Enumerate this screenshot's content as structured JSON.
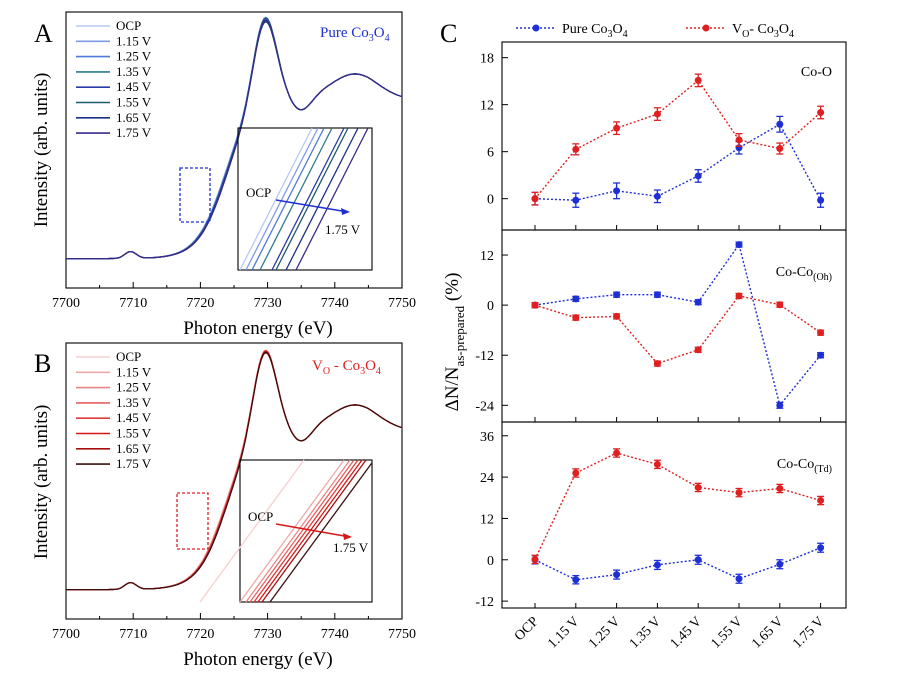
{
  "chart_data": [
    {
      "id": "A",
      "type": "line",
      "panel_label": "A",
      "title": "Pure Co3O4",
      "title_color": "#1f2fd6",
      "xlabel": "Photon energy (eV)",
      "ylabel": "Intensity (arb. units)",
      "xlim": [
        7700,
        7750
      ],
      "xticks": [
        7700,
        7710,
        7720,
        7730,
        7740,
        7750
      ],
      "legend": [
        "OCP",
        "1.15 V",
        "1.25 V",
        "1.35 V",
        "1.45 V",
        "1.55 V",
        "1.65 V",
        "1.75 V"
      ],
      "colors": [
        "#b9c8f2",
        "#7f9be6",
        "#4e7ad8",
        "#2f7a8c",
        "#2a3aa8",
        "#1b5a6a",
        "#1a2f86",
        "#3a2a8a"
      ],
      "inset": {
        "start_label": "OCP",
        "end_label": "1.75 V",
        "arrow_color": "#1f2fd6"
      }
    },
    {
      "id": "B",
      "type": "line",
      "panel_label": "B",
      "title": "VO - Co3O4",
      "title_color": "#e02020",
      "xlabel": "Photon energy (eV)",
      "ylabel": "Intensity (arb. units)",
      "xlim": [
        7700,
        7750
      ],
      "xticks": [
        7700,
        7710,
        7720,
        7730,
        7740,
        7750
      ],
      "legend": [
        "OCP",
        "1.15 V",
        "1.25 V",
        "1.35 V",
        "1.45 V",
        "1.55 V",
        "1.65 V",
        "1.75 V"
      ],
      "colors": [
        "#f6d0d0",
        "#f0a8a8",
        "#ea8585",
        "#e66060",
        "#e03a3a",
        "#d41818",
        "#a81010",
        "#3a1010"
      ],
      "inset": {
        "start_label": "OCP",
        "end_label": "1.75 V",
        "arrow_color": "#d81818"
      }
    },
    {
      "id": "C",
      "type": "line",
      "panel_label": "C",
      "ylabel": "ΔN/N as-prepared (%)",
      "categories": [
        "OCP",
        "1.15 V",
        "1.25 V",
        "1.35 V",
        "1.45 V",
        "1.55 V",
        "1.65 V",
        "1.75 V"
      ],
      "legend": [
        "Pure Co3O4",
        "VO- Co3O4"
      ],
      "colors": {
        "pure": "#1f2fd6",
        "vo": "#e02020"
      },
      "subplots": [
        {
          "name": "Co-O",
          "ylim": [
            -4,
            20
          ],
          "yticks": [
            0,
            6,
            12,
            18
          ],
          "series": [
            {
              "name": "Pure Co3O4",
              "values": [
                0,
                -0.2,
                1,
                0.3,
                2.9,
                6.5,
                9.5,
                -0.2
              ],
              "errors": [
                0.8,
                0.9,
                1,
                0.8,
                0.8,
                0.8,
                1,
                0.9
              ]
            },
            {
              "name": "VO- Co3O4",
              "values": [
                0,
                6.3,
                9,
                10.8,
                15.1,
                7.5,
                6.4,
                11
              ],
              "errors": [
                0.8,
                0.7,
                0.8,
                0.8,
                0.8,
                0.8,
                0.7,
                0.8
              ]
            }
          ]
        },
        {
          "name": "Co-Co(Oh)",
          "ylim": [
            -28,
            18
          ],
          "yticks": [
            -24,
            -12,
            0,
            12
          ],
          "series": [
            {
              "name": "Pure Co3O4",
              "values": [
                0,
                1.5,
                2.5,
                2.5,
                0.7,
                14.5,
                -24,
                -12
              ],
              "errors": [
                0.6,
                0.6,
                0.6,
                0.6,
                0.6,
                0.6,
                0.7,
                0.6
              ]
            },
            {
              "name": "VO- Co3O4",
              "values": [
                0,
                -3,
                -2.7,
                -14,
                -10.7,
                2.2,
                0.1,
                -6.6
              ],
              "errors": [
                0.6,
                0.6,
                0.6,
                0.6,
                0.6,
                0.6,
                0.6,
                0.6
              ]
            }
          ]
        },
        {
          "name": "Co-Co(Td)",
          "ylim": [
            -14,
            40
          ],
          "yticks": [
            -12,
            0,
            12,
            24,
            36
          ],
          "series": [
            {
              "name": "Pure Co3O4",
              "values": [
                0,
                -5.8,
                -4.3,
                -1.5,
                0,
                -5.5,
                -1.3,
                3.5
              ],
              "errors": [
                1.2,
                1.2,
                1.3,
                1.3,
                1.3,
                1.3,
                1.3,
                1.3
              ]
            },
            {
              "name": "VO- Co3O4",
              "values": [
                0.1,
                25.2,
                31,
                27.7,
                21,
                19.5,
                20.7,
                17.2
              ],
              "errors": [
                1.2,
                1.2,
                1.2,
                1.2,
                1.2,
                1.2,
                1.2,
                1.2
              ]
            }
          ]
        }
      ]
    }
  ]
}
